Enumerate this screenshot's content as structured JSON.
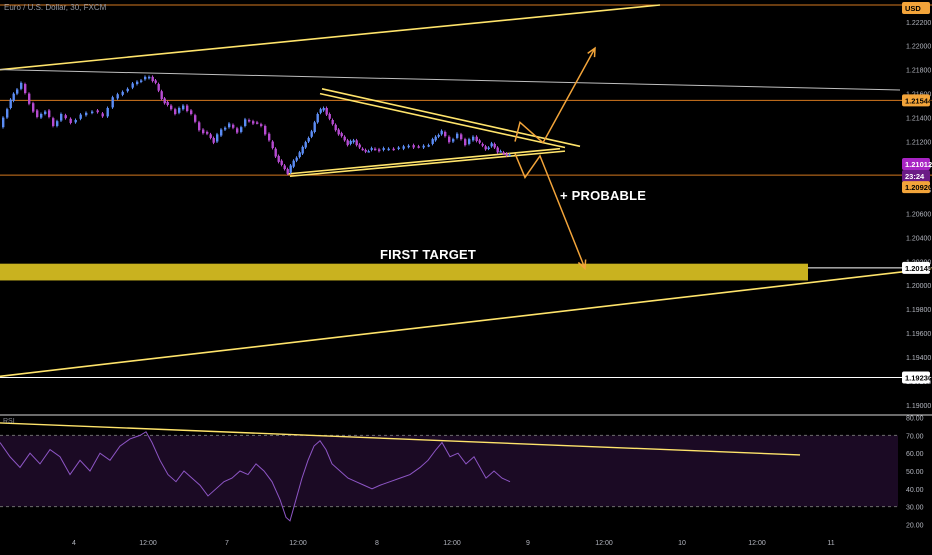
{
  "header": {
    "title": "Euro / U.S. Dollar, 30, FXCM",
    "currency": "USD",
    "rsi_label": "RSI"
  },
  "annotations": {
    "first_target": "FIRST TARGET",
    "probable": "+ PROBABLE"
  },
  "colors": {
    "background": "#000000",
    "up_candle": "#5b8cf4",
    "down_candle": "#b64bd0",
    "trendline": "#ffe46b",
    "horizontal_line": "#d4781f",
    "target_zone": "#c9b21f",
    "arrow": "#f2a43a",
    "rsi_line": "#8e56c6",
    "rsi_band": "#1b0a24",
    "price_badge_current": "#a824c4",
    "price_badge_level": "#f2a43a"
  },
  "chart_data": [
    {
      "type": "candlestick",
      "title": "Euro / U.S. Dollar, 30, FXCM",
      "yaxis": {
        "ticks": [
          "1.22200",
          "1.22000",
          "1.21800",
          "1.21600",
          "1.21400",
          "1.21200",
          "1.21000",
          "1.20800",
          "1.20600",
          "1.20400",
          "1.20200",
          "1.20000",
          "1.19800",
          "1.19600",
          "1.19400",
          "1.19200",
          "1.19000"
        ],
        "range": [
          1.1895,
          1.2234
        ]
      },
      "xaxis": {
        "ticks": [
          "4",
          "12:00",
          "7",
          "12:00",
          "8",
          "12:00",
          "9",
          "12:00",
          "10",
          "12:00",
          "11"
        ]
      },
      "price_labels": [
        {
          "text": "USD",
          "kind": "currency"
        },
        {
          "text": "1.21544",
          "kind": "level"
        },
        {
          "text": "1.21012",
          "kind": "current"
        },
        {
          "text": "23:24",
          "kind": "countdown"
        },
        {
          "text": "1.20920",
          "kind": "level"
        },
        {
          "text": "1.20145",
          "kind": "target"
        },
        {
          "text": "1.19230",
          "kind": "target"
        }
      ],
      "horizontal_levels": [
        {
          "value": 1.2234,
          "color": "#d4781f"
        },
        {
          "value": 1.21544,
          "color": "#d4781f"
        },
        {
          "value": 1.2092,
          "color": "#d4781f"
        },
        {
          "value": 1.20145,
          "color": "#ffffff"
        },
        {
          "value": 1.1923,
          "color": "#ffffff"
        }
      ],
      "target_zone": {
        "low": 1.2004,
        "high": 1.2018,
        "label": "FIRST TARGET"
      },
      "price_path": [
        [
          0,
          1.2132
        ],
        [
          8,
          1.2148
        ],
        [
          14,
          1.216
        ],
        [
          22,
          1.2168
        ],
        [
          30,
          1.2152
        ],
        [
          38,
          1.214
        ],
        [
          46,
          1.2146
        ],
        [
          54,
          1.2133
        ],
        [
          62,
          1.2142
        ],
        [
          72,
          1.2136
        ],
        [
          82,
          1.2142
        ],
        [
          94,
          1.2146
        ],
        [
          104,
          1.2141
        ],
        [
          114,
          1.2156
        ],
        [
          124,
          1.2162
        ],
        [
          134,
          1.2168
        ],
        [
          142,
          1.2172
        ],
        [
          150,
          1.2174
        ],
        [
          156,
          1.2168
        ],
        [
          162,
          1.2156
        ],
        [
          168,
          1.215
        ],
        [
          176,
          1.2144
        ],
        [
          184,
          1.215
        ],
        [
          192,
          1.2142
        ],
        [
          200,
          1.213
        ],
        [
          208,
          1.2126
        ],
        [
          214,
          1.212
        ],
        [
          222,
          1.213
        ],
        [
          230,
          1.2134
        ],
        [
          238,
          1.2128
        ],
        [
          246,
          1.2138
        ],
        [
          254,
          1.2136
        ],
        [
          262,
          1.2133
        ],
        [
          270,
          1.212
        ],
        [
          276,
          1.2108
        ],
        [
          282,
          1.21
        ],
        [
          288,
          1.2094
        ],
        [
          294,
          1.2104
        ],
        [
          300,
          1.211
        ],
        [
          306,
          1.212
        ],
        [
          312,
          1.2128
        ],
        [
          318,
          1.2144
        ],
        [
          324,
          1.2148
        ],
        [
          330,
          1.2138
        ],
        [
          336,
          1.213
        ],
        [
          342,
          1.2124
        ],
        [
          348,
          1.2118
        ],
        [
          354,
          1.2121
        ],
        [
          360,
          1.2114
        ],
        [
          366,
          1.2112
        ],
        [
          372,
          1.2114
        ],
        [
          380,
          1.2113
        ],
        [
          390,
          1.2114
        ],
        [
          400,
          1.2114
        ],
        [
          410,
          1.2117
        ],
        [
          420,
          1.2115
        ],
        [
          430,
          1.2118
        ],
        [
          436,
          1.2124
        ],
        [
          442,
          1.2128
        ],
        [
          450,
          1.212
        ],
        [
          458,
          1.2126
        ],
        [
          466,
          1.2118
        ],
        [
          474,
          1.2124
        ],
        [
          480,
          1.2118
        ],
        [
          486,
          1.2114
        ],
        [
          492,
          1.2118
        ],
        [
          498,
          1.2112
        ],
        [
          504,
          1.211
        ],
        [
          510,
          1.2108
        ]
      ],
      "trendlines": [
        {
          "from": [
            0,
            1.218
          ],
          "to": [
            660,
            1.2234
          ]
        },
        {
          "from": [
            0,
            1.218
          ],
          "to": [
            900,
            1.2163
          ]
        },
        {
          "from": [
            322,
            1.2164
          ],
          "to": [
            580,
            1.2116
          ]
        },
        {
          "from": [
            320,
            1.216
          ],
          "to": [
            565,
            1.2115
          ]
        },
        {
          "from": [
            288,
            1.2093
          ],
          "to": [
            560,
            1.2114
          ]
        },
        {
          "from": [
            290,
            1.2091
          ],
          "to": [
            565,
            1.2112
          ]
        },
        {
          "from": [
            0,
            1.1924
          ],
          "to": [
            932,
            1.2014
          ]
        }
      ],
      "arrows": [
        {
          "points": [
            [
              515,
              1.211
            ],
            [
              525,
              1.209
            ],
            [
              540,
              1.2108
            ],
            [
              585,
              1.2014
            ]
          ],
          "head": true
        },
        {
          "points": [
            [
              515,
              1.212
            ],
            [
              520,
              1.2136
            ],
            [
              543,
              1.2119
            ],
            [
              595,
              1.2198
            ]
          ],
          "head": true
        }
      ]
    },
    {
      "type": "line",
      "title": "RSI",
      "yaxis": {
        "ticks": [
          "80.00",
          "70.00",
          "60.00",
          "50.00",
          "40.00",
          "30.00",
          "20.00"
        ],
        "range": [
          18,
          82
        ]
      },
      "bands": [
        30,
        70
      ],
      "values": [
        [
          0,
          66
        ],
        [
          10,
          58
        ],
        [
          20,
          52
        ],
        [
          30,
          60
        ],
        [
          40,
          54
        ],
        [
          50,
          62
        ],
        [
          60,
          58
        ],
        [
          70,
          48
        ],
        [
          80,
          56
        ],
        [
          90,
          50
        ],
        [
          100,
          60
        ],
        [
          110,
          56
        ],
        [
          120,
          64
        ],
        [
          130,
          68
        ],
        [
          140,
          70
        ],
        [
          146,
          72
        ],
        [
          152,
          66
        ],
        [
          160,
          56
        ],
        [
          168,
          48
        ],
        [
          176,
          44
        ],
        [
          184,
          50
        ],
        [
          192,
          46
        ],
        [
          200,
          42
        ],
        [
          208,
          36
        ],
        [
          216,
          40
        ],
        [
          224,
          44
        ],
        [
          232,
          46
        ],
        [
          240,
          50
        ],
        [
          248,
          48
        ],
        [
          256,
          54
        ],
        [
          264,
          50
        ],
        [
          272,
          44
        ],
        [
          280,
          34
        ],
        [
          286,
          24
        ],
        [
          290,
          22
        ],
        [
          296,
          34
        ],
        [
          302,
          46
        ],
        [
          308,
          56
        ],
        [
          314,
          64
        ],
        [
          320,
          67
        ],
        [
          326,
          62
        ],
        [
          332,
          54
        ],
        [
          340,
          50
        ],
        [
          348,
          46
        ],
        [
          356,
          44
        ],
        [
          364,
          42
        ],
        [
          372,
          40
        ],
        [
          380,
          42
        ],
        [
          390,
          44
        ],
        [
          400,
          46
        ],
        [
          410,
          48
        ],
        [
          420,
          52
        ],
        [
          428,
          56
        ],
        [
          436,
          62
        ],
        [
          442,
          66
        ],
        [
          450,
          58
        ],
        [
          458,
          60
        ],
        [
          466,
          54
        ],
        [
          474,
          58
        ],
        [
          480,
          52
        ],
        [
          486,
          46
        ],
        [
          494,
          50
        ],
        [
          502,
          46
        ],
        [
          510,
          44
        ]
      ],
      "trendline": {
        "from": [
          0,
          77
        ],
        "to": [
          800,
          59
        ]
      }
    }
  ]
}
